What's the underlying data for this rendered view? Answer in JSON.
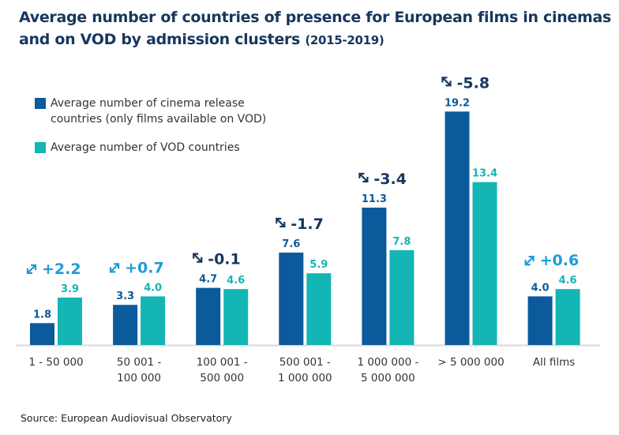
{
  "title": "Average number of countries of presence for European films in cinemas and on VOD by admission clusters",
  "title_years": "(2015-2019)",
  "source": "Source: European Audiovisual Observatory",
  "colors": {
    "cinema": "#0b5a9b",
    "vod": "#13b6b4",
    "positive": "#1f9bd7",
    "negative": "#17375e"
  },
  "chart_data": {
    "type": "bar",
    "title": "Average number of countries of presence for European films in cinemas and on VOD by admission clusters (2015-2019)",
    "categories": [
      "1 - 50 000",
      "50 001 - 100 000",
      "100 001 - 500 000",
      "500 001 - 1 000 000",
      "1 000 000 - 5 000 000",
      "> 5 000 000",
      "All films"
    ],
    "category_lines": [
      [
        "1 - 50 000"
      ],
      [
        "50 001 -",
        "100 000"
      ],
      [
        "100 001 -",
        "500 000"
      ],
      [
        "500 001 -",
        "1 000 000"
      ],
      [
        "1 000 000 -",
        "5 000 000"
      ],
      [
        "> 5 000 000"
      ],
      [
        "All films"
      ]
    ],
    "series": [
      {
        "name": "Average number of cinema release countries (only films available on VOD)",
        "values": [
          1.8,
          3.3,
          4.7,
          7.6,
          11.3,
          19.2,
          4.0
        ]
      },
      {
        "name": "Average number of VOD countries",
        "values": [
          3.9,
          4.0,
          4.6,
          5.9,
          7.8,
          13.4,
          4.6
        ]
      }
    ],
    "value_labels": [
      [
        "1.8",
        "3.3",
        "4.7",
        "7.6",
        "11.3",
        "19.2",
        "4.0"
      ],
      [
        "3.9",
        "4.0",
        "4.6",
        "5.9",
        "7.8",
        "13.4",
        "4.6"
      ]
    ],
    "differences": [
      "+2.2",
      "+0.7",
      "-0.1",
      "-1.7",
      "-3.4",
      "-5.8",
      "+0.6"
    ],
    "ylim": [
      0,
      20
    ],
    "grid": false,
    "legend_position": "top-left",
    "xlabel": "",
    "ylabel": ""
  }
}
